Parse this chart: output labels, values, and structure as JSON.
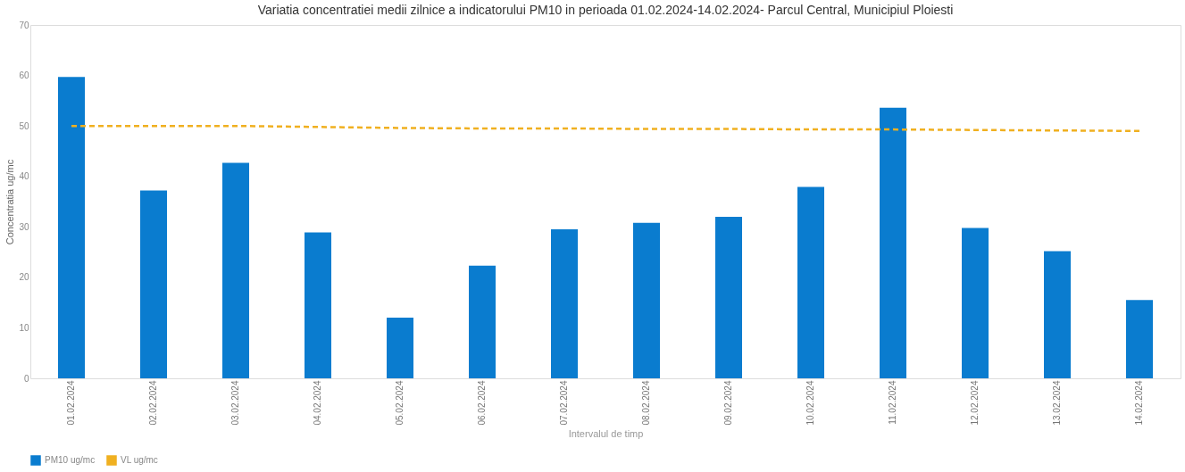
{
  "chart_data": {
    "type": "bar",
    "title": "Variatia concentratiei medii zilnice a indicatorului PM10 in perioada 01.02.2024-14.02.2024- Parcul Central, Municipiul Ploiesti",
    "xlabel": "Intervalul de timp",
    "ylabel": "Concentratia ug/mc",
    "categories": [
      "01.02.2024",
      "02.02.2024",
      "03.02.2024",
      "04.02.2024",
      "05.02.2024",
      "06.02.2024",
      "07.02.2024",
      "08.02.2024",
      "09.02.2024",
      "10.02.2024",
      "11.02.2024",
      "12.02.2024",
      "13.02.2024",
      "14.02.2024"
    ],
    "series": [
      {
        "name": "PM10 ug/mc",
        "color": "#0a7ccf",
        "values": [
          59.7,
          37.2,
          42.7,
          28.9,
          12.0,
          22.3,
          29.5,
          30.8,
          32.0,
          37.9,
          53.6,
          29.8,
          25.2,
          15.5
        ]
      },
      {
        "name": "VL ug/mc",
        "type": "line",
        "color": "#f0b020",
        "line_style": "dashed",
        "values": [
          50,
          50,
          50,
          49.8,
          49.6,
          49.5,
          49.5,
          49.4,
          49.4,
          49.3,
          49.3,
          49.2,
          49.1,
          49.0
        ]
      }
    ],
    "ylim": [
      0,
      70
    ],
    "yticks": [
      0,
      10,
      20,
      30,
      40,
      50,
      60,
      70
    ],
    "grid": false,
    "legend": "bottom"
  }
}
